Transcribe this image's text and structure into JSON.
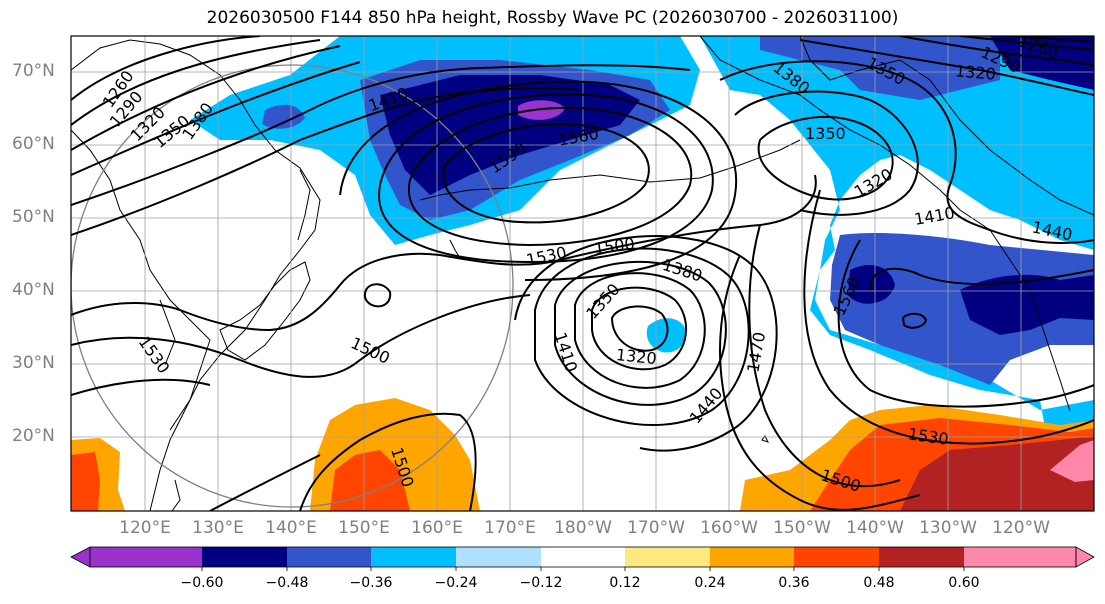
{
  "title": "2026030500 F144 850 hPa height, Rossby Wave PC (2026030700 - 2026031100)",
  "lat_labels": [
    "70°N",
    "60°N",
    "50°N",
    "40°N",
    "30°N",
    "20°N"
  ],
  "lon_labels": [
    "120°E",
    "130°E",
    "140°E",
    "150°E",
    "160°E",
    "170°E",
    "180°W",
    "170°W",
    "160°W",
    "150°W",
    "140°W",
    "130°W",
    "120°W"
  ],
  "contour_labels": [
    "1260",
    "1290",
    "1320",
    "1350",
    "1380",
    "1410",
    "1560",
    "1590",
    "1530",
    "1500",
    "1380",
    "1350",
    "1320",
    "1410",
    "1440",
    "1470",
    "1500",
    "1530",
    "1500",
    "1530",
    "1500",
    "1350",
    "1320",
    "1410",
    "1440",
    "1560",
    "1380",
    "1350",
    "1320",
    "1290",
    "1260"
  ],
  "colorbar": {
    "ticks": [
      "−0.60",
      "−0.48",
      "−0.36",
      "−0.24",
      "−0.12",
      "0.12",
      "0.24",
      "0.36",
      "0.48",
      "0.60"
    ],
    "colors": [
      "#9933cc",
      "#000080",
      "#3355cc",
      "#00bfff",
      "#b0e0ff",
      "#ffffff",
      "#ffe880",
      "#ffa500",
      "#ff4500",
      "#b22222",
      "#ff88aa"
    ]
  }
}
